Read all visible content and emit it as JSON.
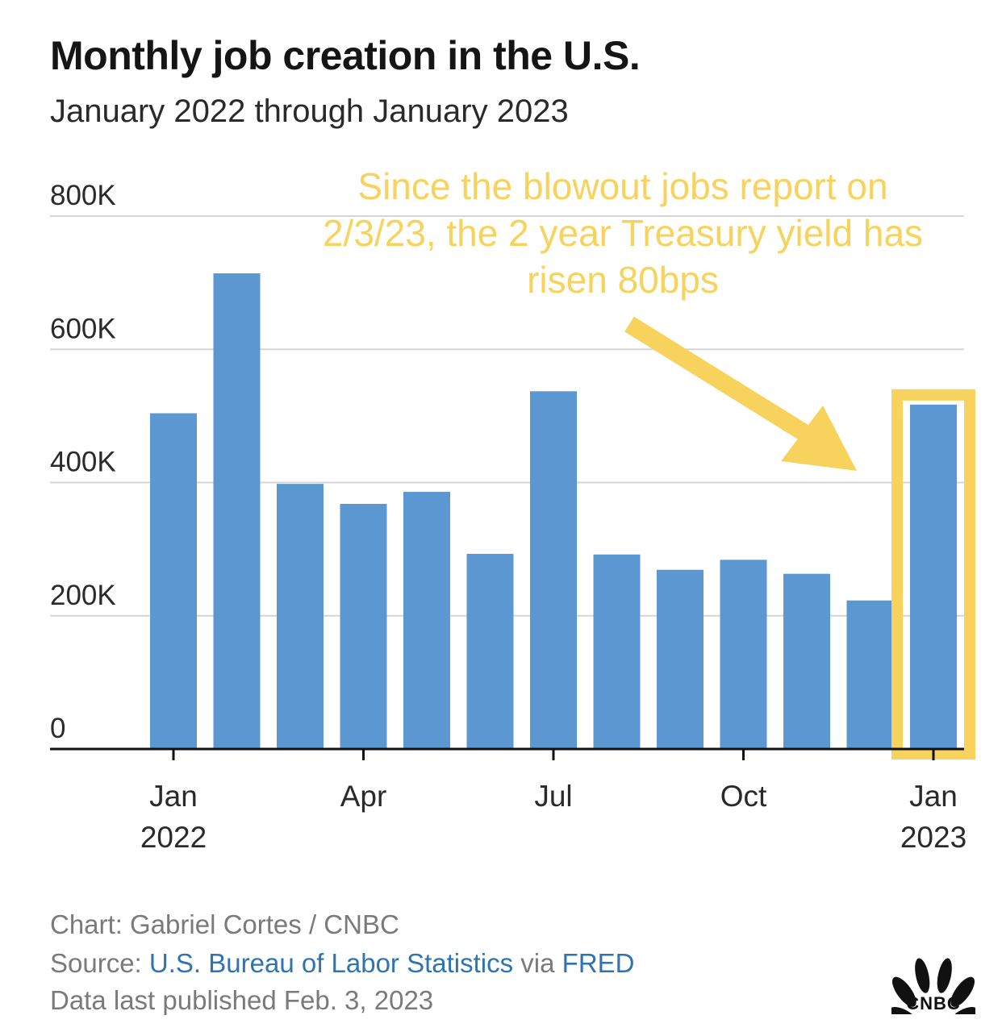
{
  "title": "Monthly job creation in the U.S.",
  "subtitle": "January 2022 through January 2023",
  "chart_data": {
    "type": "bar",
    "categories": [
      "Jan 2022",
      "Feb 2022",
      "Mar 2022",
      "Apr 2022",
      "May 2022",
      "Jun 2022",
      "Jul 2022",
      "Aug 2022",
      "Sep 2022",
      "Oct 2022",
      "Nov 2022",
      "Dec 2022",
      "Jan 2023"
    ],
    "values": [
      504000,
      714000,
      398000,
      368000,
      386000,
      293000,
      537000,
      292000,
      269000,
      284000,
      263000,
      223000,
      517000
    ],
    "ylim": [
      0,
      800000
    ],
    "yticks": [
      {
        "value": 0,
        "label": "0"
      },
      {
        "value": 200000,
        "label": "200K"
      },
      {
        "value": 400000,
        "label": "400K"
      },
      {
        "value": 600000,
        "label": "600K"
      },
      {
        "value": 800000,
        "label": "800K"
      }
    ],
    "xticks": [
      {
        "index": 0,
        "line1": "Jan",
        "line2": "2022"
      },
      {
        "index": 3,
        "line1": "Apr",
        "line2": ""
      },
      {
        "index": 6,
        "line1": "Jul",
        "line2": ""
      },
      {
        "index": 9,
        "line1": "Oct",
        "line2": ""
      },
      {
        "index": 12,
        "line1": "Jan",
        "line2": "2023"
      }
    ],
    "grid": true,
    "bar_color": "#5b97d1",
    "annotation": {
      "lines": [
        "Since the blowout jobs report on",
        "2/3/23, the 2 year Treasury yield has",
        "risen 80bps"
      ],
      "color": "#f7d35e",
      "highlight_index": 12
    }
  },
  "footer": {
    "credit": "Chart: Gabriel Cortes / CNBC",
    "source_prefix": "Source: ",
    "source_link": "U.S. Bureau of Labor Statistics",
    "source_mid": " via ",
    "source_link2": "FRED",
    "published": "Data last published Feb. 3, 2023"
  },
  "logo": {
    "text": "CNBC",
    "icon": "peacock-icon"
  }
}
